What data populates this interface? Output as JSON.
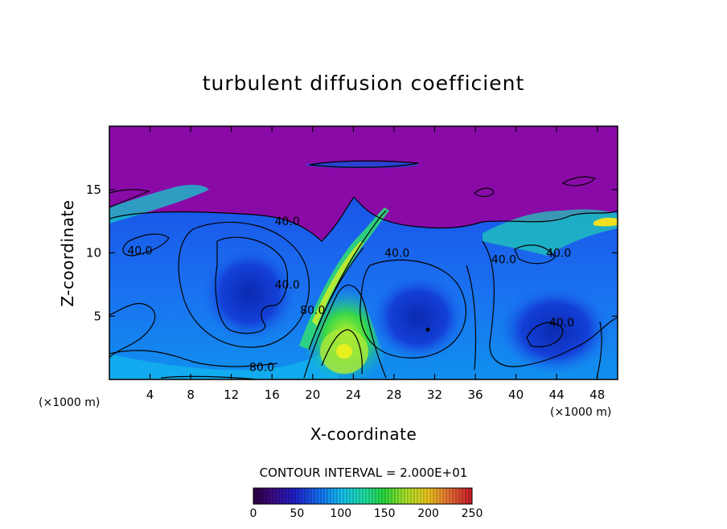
{
  "chart_data": {
    "type": "heatmap",
    "title": "turbulent diffusion coefficient",
    "xlabel": "X-coordinate",
    "ylabel": "Z-coordinate",
    "x_unit": "(×1000 m)",
    "x_unit_right": "(×1000 m)",
    "xlim": [
      0,
      50
    ],
    "ylim": [
      0,
      20
    ],
    "x_ticks": [
      4,
      8,
      12,
      16,
      20,
      24,
      28,
      32,
      36,
      40,
      44,
      48
    ],
    "y_ticks": [
      5,
      10,
      15
    ],
    "contour_interval_text": "CONTOUR INTERVAL = 2.000E+01",
    "contour_labels": [
      {
        "text": "40.0",
        "x": 17.5,
        "y": 12.5
      },
      {
        "text": "40.0",
        "x": 28.3,
        "y": 10.0
      },
      {
        "text": "40.0",
        "x": 17.5,
        "y": 7.5
      },
      {
        "text": "40.0",
        "x": 3.0,
        "y": 10.2
      },
      {
        "text": "40.0",
        "x": 38.8,
        "y": 9.5
      },
      {
        "text": "40.0",
        "x": 44.5,
        "y": 4.5
      },
      {
        "text": "40.0",
        "x": 44.2,
        "y": 10.0
      },
      {
        "text": "80.0",
        "x": 20.0,
        "y": 5.5
      },
      {
        "text": "80.0",
        "x": 15.0,
        "y": 1.0
      }
    ],
    "colorbar": {
      "min": 0,
      "max": 250,
      "ticks": [
        0,
        50,
        100,
        150,
        200,
        250
      ]
    },
    "colors": {
      "upper_layer": "#8a0aa8",
      "low": "#1f3fe0",
      "mid": "#0aa0f0",
      "high": "#28e060",
      "peak": "#e8f020"
    }
  }
}
